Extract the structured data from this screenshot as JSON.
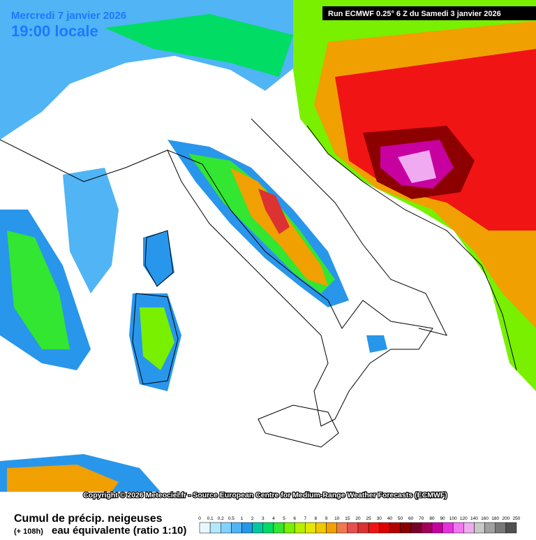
{
  "header": {
    "date": "Mercredi 7 janvier 2026",
    "time": "19:00 locale",
    "run": "Run ECMWF 0.25° 6 Z du Samedi 3 janvier 2026"
  },
  "copyright": "Copyright © 2026 Meteociel.fr - Source European Centre for Medium-Range Weather Forecasts (ECMWF)",
  "legend": {
    "title": "Cumul de précip. neigeuses",
    "lead": "(+ 108h)",
    "subtitle": "eau équivalente (ratio 1:10)",
    "labels": [
      "0",
      "0.1",
      "0.2",
      "0.5",
      "1",
      "2",
      "3",
      "4",
      "5",
      "6",
      "7",
      "8",
      "9",
      "10",
      "15",
      "20",
      "25",
      "30",
      "40",
      "50",
      "60",
      "70",
      "80",
      "90",
      "100",
      "120",
      "140",
      "160",
      "180",
      "200",
      "250"
    ],
    "colors": [
      "#e8f8ff",
      "#b4e8ff",
      "#82d2ff",
      "#50b4f5",
      "#2896eb",
      "#00c8a0",
      "#00dc64",
      "#32e632",
      "#78f000",
      "#b4f000",
      "#e6e600",
      "#f0c800",
      "#f0a000",
      "#f07850",
      "#e65050",
      "#dc3232",
      "#f01414",
      "#dc0000",
      "#b40000",
      "#8c0000",
      "#780028",
      "#a0005a",
      "#c800a0",
      "#e632dc",
      "#f078f0",
      "#f0aaf0",
      "#c8c8c8",
      "#a0a0a0",
      "#787878",
      "#505050"
    ]
  }
}
